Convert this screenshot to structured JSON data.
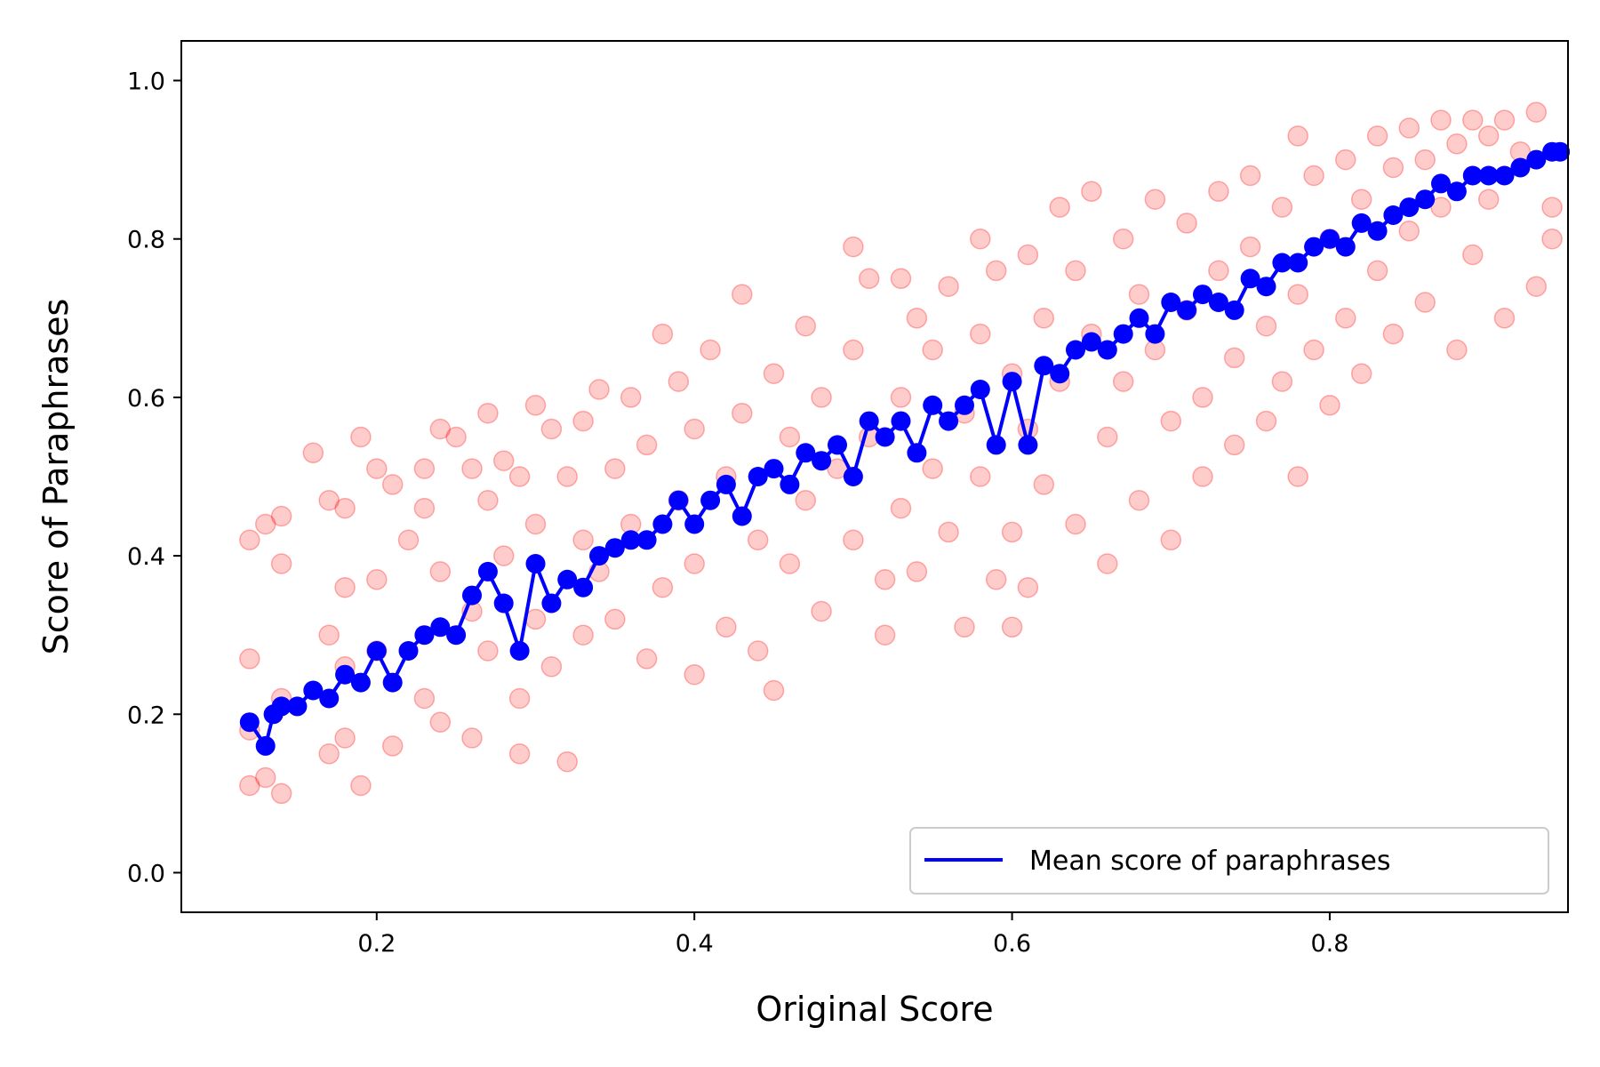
{
  "chart_data": {
    "type": "scatter",
    "xlabel": "Original Score",
    "ylabel": "Score of Paraphrases",
    "xlim": [
      0.077,
      0.95
    ],
    "ylim": [
      -0.05,
      1.05
    ],
    "x_ticks": [
      0.2,
      0.4,
      0.6,
      0.8
    ],
    "y_ticks": [
      0.0,
      0.2,
      0.4,
      0.6,
      0.8,
      1.0
    ],
    "x_tick_labels": [
      "0.2",
      "0.4",
      "0.6",
      "0.8"
    ],
    "y_tick_labels": [
      "0.0",
      "0.2",
      "0.4",
      "0.6",
      "0.8",
      "1.0"
    ],
    "grid": false,
    "legend": {
      "placement": "lower-right",
      "entries": [
        {
          "label": "Mean score of paraphrases",
          "color": "#0000ff"
        }
      ]
    },
    "series": [
      {
        "kind": "scatter",
        "color": "#ff0000",
        "opacity": 0.2,
        "points": [
          [
            0.12,
            0.42
          ],
          [
            0.12,
            0.27
          ],
          [
            0.12,
            0.18
          ],
          [
            0.12,
            0.11
          ],
          [
            0.13,
            0.12
          ],
          [
            0.13,
            0.44
          ],
          [
            0.14,
            0.39
          ],
          [
            0.14,
            0.45
          ],
          [
            0.14,
            0.22
          ],
          [
            0.14,
            0.1
          ],
          [
            0.16,
            0.53
          ],
          [
            0.17,
            0.47
          ],
          [
            0.17,
            0.3
          ],
          [
            0.17,
            0.15
          ],
          [
            0.18,
            0.46
          ],
          [
            0.18,
            0.36
          ],
          [
            0.18,
            0.26
          ],
          [
            0.18,
            0.17
          ],
          [
            0.19,
            0.55
          ],
          [
            0.19,
            0.11
          ],
          [
            0.2,
            0.51
          ],
          [
            0.2,
            0.37
          ],
          [
            0.2,
            0.28
          ],
          [
            0.21,
            0.49
          ],
          [
            0.21,
            0.16
          ],
          [
            0.22,
            0.42
          ],
          [
            0.23,
            0.51
          ],
          [
            0.23,
            0.46
          ],
          [
            0.23,
            0.22
          ],
          [
            0.24,
            0.56
          ],
          [
            0.24,
            0.38
          ],
          [
            0.24,
            0.19
          ],
          [
            0.25,
            0.55
          ],
          [
            0.26,
            0.51
          ],
          [
            0.26,
            0.33
          ],
          [
            0.26,
            0.17
          ],
          [
            0.27,
            0.58
          ],
          [
            0.27,
            0.47
          ],
          [
            0.27,
            0.28
          ],
          [
            0.28,
            0.52
          ],
          [
            0.28,
            0.4
          ],
          [
            0.29,
            0.15
          ],
          [
            0.29,
            0.22
          ],
          [
            0.29,
            0.5
          ],
          [
            0.3,
            0.59
          ],
          [
            0.3,
            0.44
          ],
          [
            0.3,
            0.32
          ],
          [
            0.31,
            0.56
          ],
          [
            0.31,
            0.26
          ],
          [
            0.32,
            0.14
          ],
          [
            0.32,
            0.5
          ],
          [
            0.33,
            0.57
          ],
          [
            0.33,
            0.42
          ],
          [
            0.33,
            0.3
          ],
          [
            0.34,
            0.61
          ],
          [
            0.34,
            0.38
          ],
          [
            0.35,
            0.51
          ],
          [
            0.35,
            0.32
          ],
          [
            0.36,
            0.6
          ],
          [
            0.36,
            0.44
          ],
          [
            0.37,
            0.27
          ],
          [
            0.37,
            0.54
          ],
          [
            0.38,
            0.68
          ],
          [
            0.38,
            0.36
          ],
          [
            0.39,
            0.62
          ],
          [
            0.39,
            0.47
          ],
          [
            0.4,
            0.25
          ],
          [
            0.4,
            0.56
          ],
          [
            0.4,
            0.39
          ],
          [
            0.41,
            0.66
          ],
          [
            0.42,
            0.5
          ],
          [
            0.42,
            0.31
          ],
          [
            0.43,
            0.73
          ],
          [
            0.43,
            0.58
          ],
          [
            0.44,
            0.42
          ],
          [
            0.44,
            0.28
          ],
          [
            0.45,
            0.63
          ],
          [
            0.45,
            0.23
          ],
          [
            0.46,
            0.55
          ],
          [
            0.46,
            0.39
          ],
          [
            0.47,
            0.69
          ],
          [
            0.47,
            0.47
          ],
          [
            0.48,
            0.33
          ],
          [
            0.48,
            0.6
          ],
          [
            0.49,
            0.51
          ],
          [
            0.5,
            0.79
          ],
          [
            0.5,
            0.66
          ],
          [
            0.5,
            0.42
          ],
          [
            0.51,
            0.75
          ],
          [
            0.51,
            0.55
          ],
          [
            0.52,
            0.37
          ],
          [
            0.52,
            0.3
          ],
          [
            0.53,
            0.75
          ],
          [
            0.53,
            0.6
          ],
          [
            0.53,
            0.46
          ],
          [
            0.54,
            0.7
          ],
          [
            0.54,
            0.38
          ],
          [
            0.55,
            0.66
          ],
          [
            0.55,
            0.51
          ],
          [
            0.56,
            0.43
          ],
          [
            0.56,
            0.74
          ],
          [
            0.57,
            0.58
          ],
          [
            0.57,
            0.31
          ],
          [
            0.58,
            0.8
          ],
          [
            0.58,
            0.68
          ],
          [
            0.58,
            0.5
          ],
          [
            0.59,
            0.37
          ],
          [
            0.59,
            0.76
          ],
          [
            0.6,
            0.63
          ],
          [
            0.6,
            0.31
          ],
          [
            0.6,
            0.43
          ],
          [
            0.61,
            0.78
          ],
          [
            0.61,
            0.56
          ],
          [
            0.61,
            0.36
          ],
          [
            0.62,
            0.7
          ],
          [
            0.62,
            0.49
          ],
          [
            0.63,
            0.84
          ],
          [
            0.63,
            0.62
          ],
          [
            0.64,
            0.76
          ],
          [
            0.64,
            0.44
          ],
          [
            0.65,
            0.86
          ],
          [
            0.65,
            0.68
          ],
          [
            0.66,
            0.55
          ],
          [
            0.66,
            0.39
          ],
          [
            0.67,
            0.8
          ],
          [
            0.67,
            0.62
          ],
          [
            0.68,
            0.73
          ],
          [
            0.68,
            0.47
          ],
          [
            0.69,
            0.85
          ],
          [
            0.69,
            0.66
          ],
          [
            0.7,
            0.57
          ],
          [
            0.7,
            0.42
          ],
          [
            0.71,
            0.82
          ],
          [
            0.71,
            0.71
          ],
          [
            0.72,
            0.6
          ],
          [
            0.72,
            0.5
          ],
          [
            0.73,
            0.86
          ],
          [
            0.73,
            0.76
          ],
          [
            0.74,
            0.65
          ],
          [
            0.74,
            0.54
          ],
          [
            0.75,
            0.88
          ],
          [
            0.75,
            0.79
          ],
          [
            0.76,
            0.69
          ],
          [
            0.76,
            0.57
          ],
          [
            0.77,
            0.84
          ],
          [
            0.77,
            0.62
          ],
          [
            0.78,
            0.93
          ],
          [
            0.78,
            0.73
          ],
          [
            0.78,
            0.5
          ],
          [
            0.79,
            0.88
          ],
          [
            0.79,
            0.66
          ],
          [
            0.8,
            0.8
          ],
          [
            0.8,
            0.59
          ],
          [
            0.81,
            0.9
          ],
          [
            0.81,
            0.7
          ],
          [
            0.82,
            0.85
          ],
          [
            0.82,
            0.63
          ],
          [
            0.83,
            0.93
          ],
          [
            0.83,
            0.76
          ],
          [
            0.84,
            0.89
          ],
          [
            0.84,
            0.68
          ],
          [
            0.85,
            0.94
          ],
          [
            0.85,
            0.81
          ],
          [
            0.86,
            0.9
          ],
          [
            0.86,
            0.72
          ],
          [
            0.87,
            0.95
          ],
          [
            0.87,
            0.84
          ],
          [
            0.88,
            0.92
          ],
          [
            0.88,
            0.66
          ],
          [
            0.89,
            0.95
          ],
          [
            0.89,
            0.78
          ],
          [
            0.9,
            0.93
          ],
          [
            0.9,
            0.85
          ],
          [
            0.91,
            0.95
          ],
          [
            0.91,
            0.7
          ],
          [
            0.92,
            0.91
          ],
          [
            0.93,
            0.96
          ],
          [
            0.93,
            0.74
          ],
          [
            0.94,
            0.84
          ],
          [
            0.94,
            0.8
          ]
        ]
      },
      {
        "kind": "line",
        "name": "Mean score of paraphrases",
        "color": "#0000ff",
        "points": [
          [
            0.12,
            0.19
          ],
          [
            0.13,
            0.16
          ],
          [
            0.135,
            0.2
          ],
          [
            0.14,
            0.21
          ],
          [
            0.15,
            0.21
          ],
          [
            0.16,
            0.23
          ],
          [
            0.17,
            0.22
          ],
          [
            0.18,
            0.25
          ],
          [
            0.19,
            0.24
          ],
          [
            0.2,
            0.28
          ],
          [
            0.21,
            0.24
          ],
          [
            0.22,
            0.28
          ],
          [
            0.23,
            0.3
          ],
          [
            0.24,
            0.31
          ],
          [
            0.25,
            0.3
          ],
          [
            0.26,
            0.35
          ],
          [
            0.27,
            0.38
          ],
          [
            0.28,
            0.34
          ],
          [
            0.29,
            0.28
          ],
          [
            0.3,
            0.39
          ],
          [
            0.31,
            0.34
          ],
          [
            0.32,
            0.37
          ],
          [
            0.33,
            0.36
          ],
          [
            0.34,
            0.4
          ],
          [
            0.35,
            0.41
          ],
          [
            0.36,
            0.42
          ],
          [
            0.37,
            0.42
          ],
          [
            0.38,
            0.44
          ],
          [
            0.39,
            0.47
          ],
          [
            0.4,
            0.44
          ],
          [
            0.41,
            0.47
          ],
          [
            0.42,
            0.49
          ],
          [
            0.43,
            0.45
          ],
          [
            0.44,
            0.5
          ],
          [
            0.45,
            0.51
          ],
          [
            0.46,
            0.49
          ],
          [
            0.47,
            0.53
          ],
          [
            0.48,
            0.52
          ],
          [
            0.49,
            0.54
          ],
          [
            0.5,
            0.5
          ],
          [
            0.51,
            0.57
          ],
          [
            0.52,
            0.55
          ],
          [
            0.53,
            0.57
          ],
          [
            0.54,
            0.53
          ],
          [
            0.55,
            0.59
          ],
          [
            0.56,
            0.57
          ],
          [
            0.57,
            0.59
          ],
          [
            0.58,
            0.61
          ],
          [
            0.59,
            0.54
          ],
          [
            0.6,
            0.62
          ],
          [
            0.61,
            0.54
          ],
          [
            0.62,
            0.64
          ],
          [
            0.63,
            0.63
          ],
          [
            0.64,
            0.66
          ],
          [
            0.65,
            0.67
          ],
          [
            0.66,
            0.66
          ],
          [
            0.67,
            0.68
          ],
          [
            0.68,
            0.7
          ],
          [
            0.69,
            0.68
          ],
          [
            0.7,
            0.72
          ],
          [
            0.71,
            0.71
          ],
          [
            0.72,
            0.73
          ],
          [
            0.73,
            0.72
          ],
          [
            0.74,
            0.71
          ],
          [
            0.75,
            0.75
          ],
          [
            0.76,
            0.74
          ],
          [
            0.77,
            0.77
          ],
          [
            0.78,
            0.77
          ],
          [
            0.79,
            0.79
          ],
          [
            0.8,
            0.8
          ],
          [
            0.81,
            0.79
          ],
          [
            0.82,
            0.82
          ],
          [
            0.83,
            0.81
          ],
          [
            0.84,
            0.83
          ],
          [
            0.85,
            0.84
          ],
          [
            0.86,
            0.85
          ],
          [
            0.87,
            0.87
          ],
          [
            0.88,
            0.86
          ],
          [
            0.89,
            0.88
          ],
          [
            0.9,
            0.88
          ],
          [
            0.91,
            0.88
          ],
          [
            0.92,
            0.89
          ],
          [
            0.93,
            0.9
          ],
          [
            0.94,
            0.91
          ],
          [
            0.945,
            0.91
          ]
        ]
      }
    ]
  }
}
